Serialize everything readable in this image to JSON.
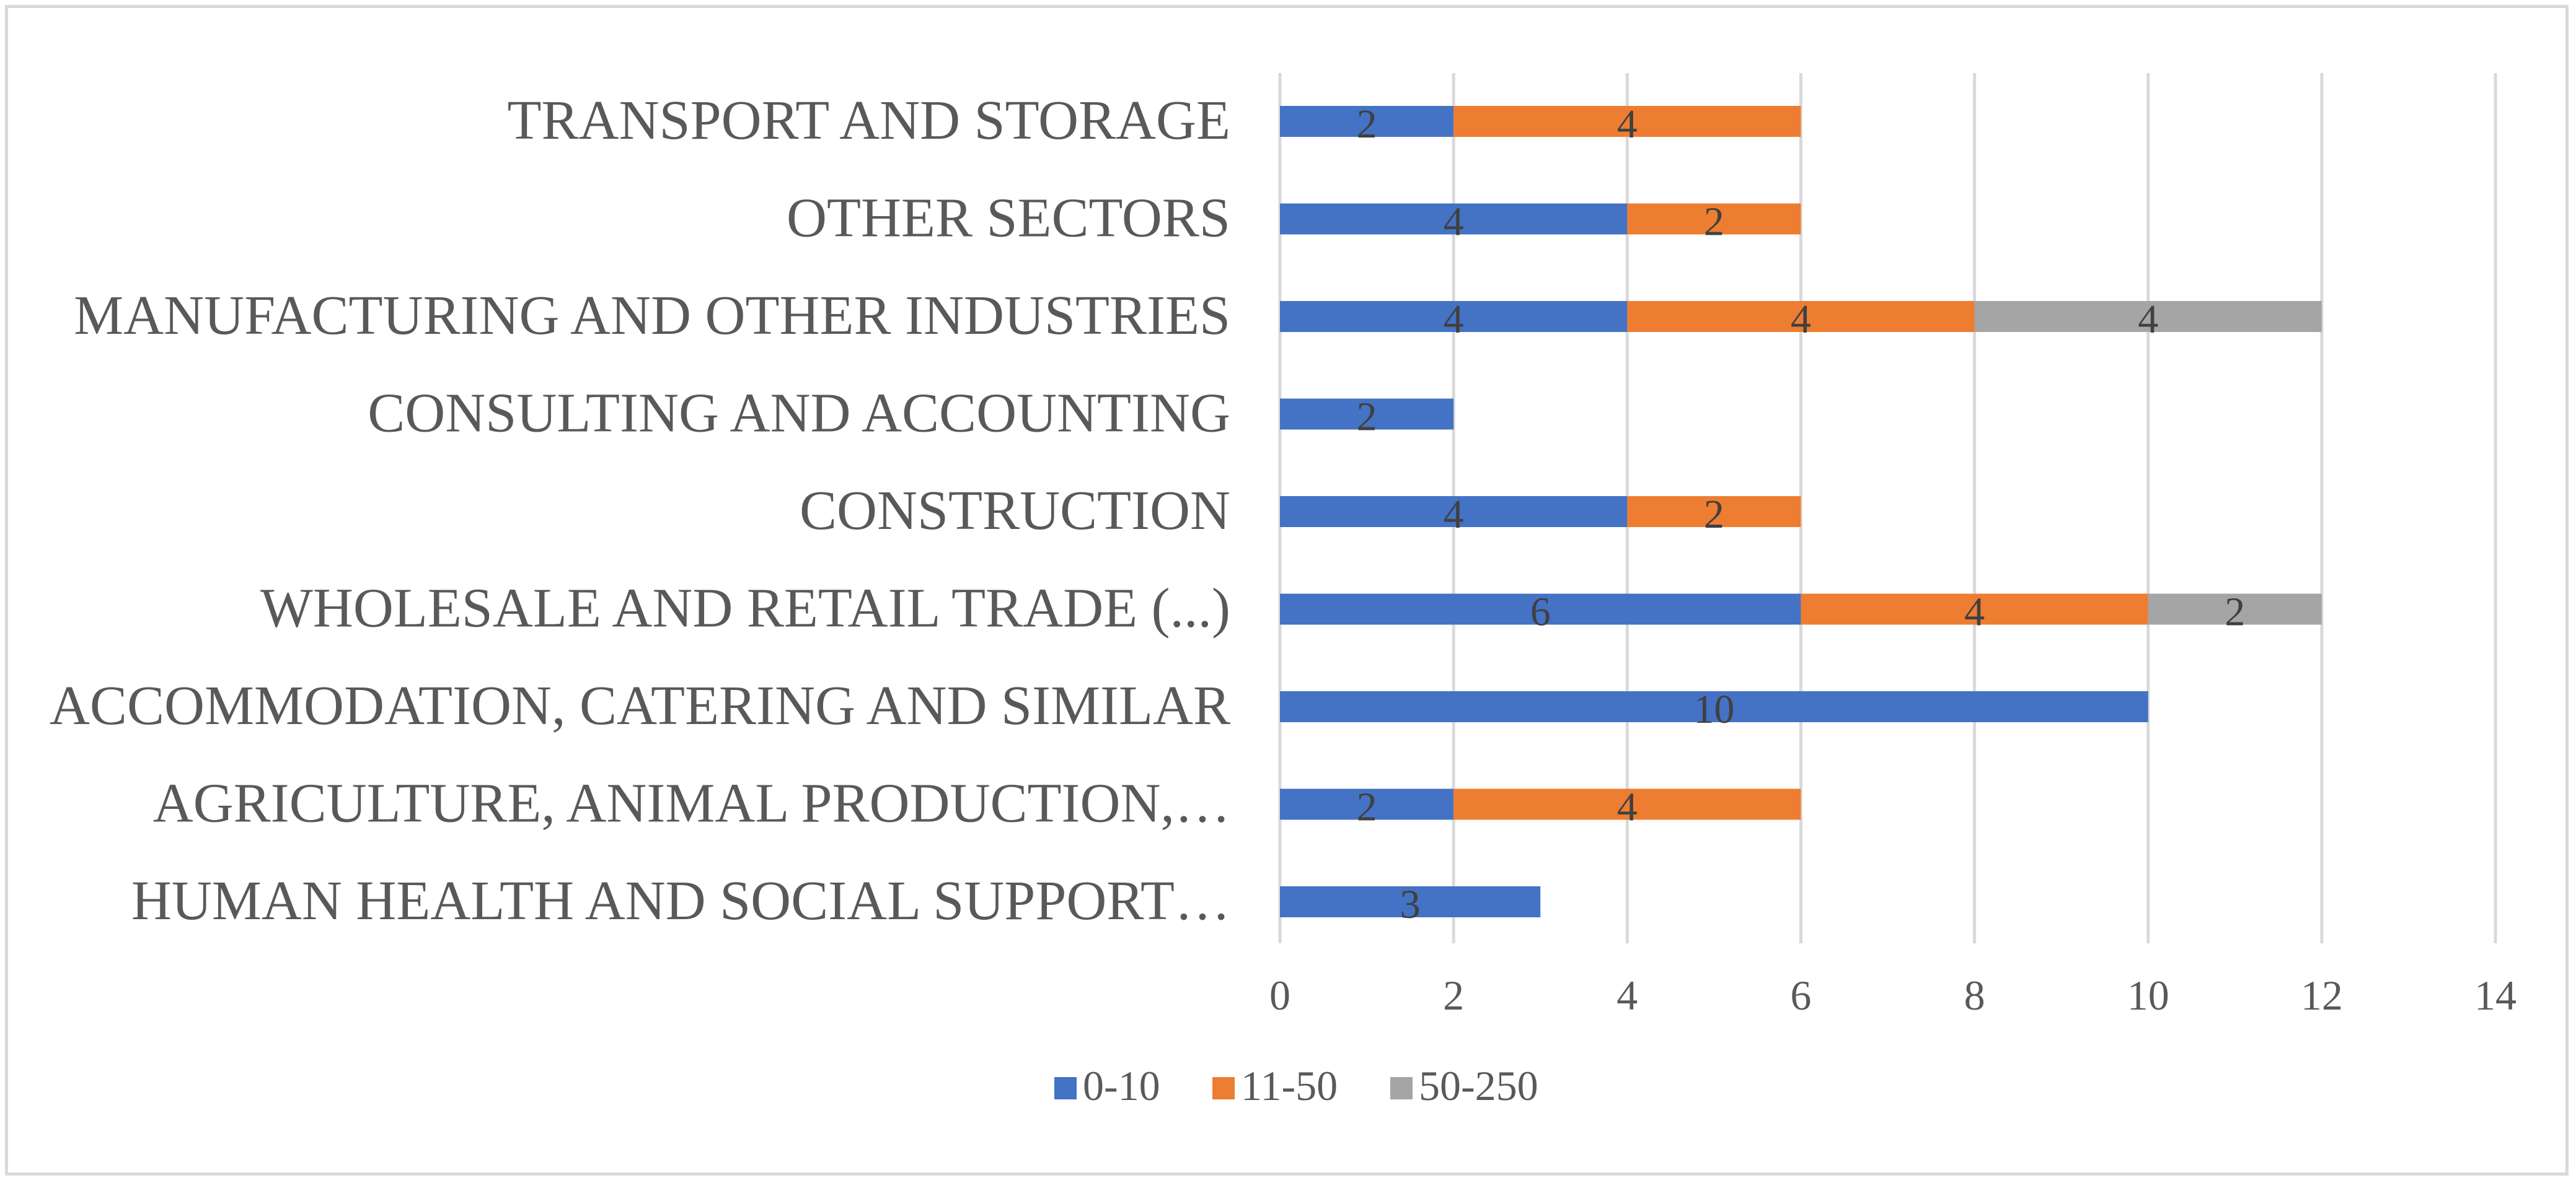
{
  "chart_data": {
    "type": "bar",
    "orientation": "horizontal",
    "stacked": true,
    "title": "",
    "xlabel": "",
    "ylabel": "",
    "xlim": [
      0,
      14
    ],
    "xticks": [
      0,
      2,
      4,
      6,
      8,
      10,
      12,
      14
    ],
    "grid": true,
    "legend_position": "bottom",
    "categories": [
      "TRANSPORT AND STORAGE",
      "OTHER SECTORS",
      "MANUFACTURING AND OTHER INDUSTRIES",
      "CONSULTING AND ACCOUNTING",
      "CONSTRUCTION",
      "WHOLESALE AND RETAIL TRADE (...)",
      "ACCOMMODATION, CATERING AND SIMILAR",
      "AGRICULTURE, ANIMAL PRODUCTION,…",
      "HUMAN HEALTH AND SOCIAL SUPPORT…"
    ],
    "series": [
      {
        "name": "0-10",
        "color": "#4472c4",
        "values": [
          2,
          4,
          4,
          2,
          4,
          6,
          10,
          2,
          3
        ]
      },
      {
        "name": "11-50",
        "color": "#ed7d31",
        "values": [
          4,
          2,
          4,
          0,
          2,
          4,
          0,
          4,
          0
        ]
      },
      {
        "name": "50-250",
        "color": "#a5a5a5",
        "values": [
          0,
          0,
          4,
          0,
          0,
          2,
          0,
          0,
          0
        ]
      }
    ]
  }
}
